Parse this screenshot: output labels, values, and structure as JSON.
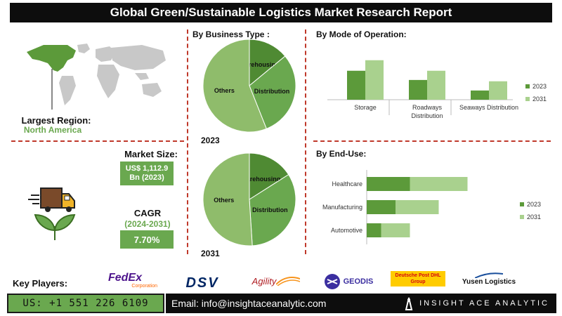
{
  "title": "Global Green/Sustainable Logistics Market Research Report",
  "left_panel": {
    "largest_region_label": "Largest Region:",
    "largest_region_value": "North America",
    "market_size_label": "Market Size:",
    "market_size_value_line1": "US$ 1,112.9",
    "market_size_value_line2": "Bn (2023)",
    "cagr_label": "CAGR",
    "cagr_period": "(2024-2031)",
    "cagr_value": "7.70%"
  },
  "colors": {
    "dark_green": "#5c9a3a",
    "light_green": "#a9d18e",
    "others_green": "#8fbc6b",
    "distribution_green": "#6aa84f",
    "warehousing_green": "#4f8a33",
    "accent_red": "#c0392b"
  },
  "key_players": {
    "label": "Key Players:",
    "logos": [
      "FedEx",
      "Corporation",
      "DSV",
      "Agility",
      "GEODIS",
      "Deutsche Post DHL",
      "Group",
      "Yusen Logistics"
    ]
  },
  "footer": {
    "phone": "US: +1 551 226 6109",
    "email": "Email: info@insightaceanalytic.com",
    "brand": "INSIGHT ACE ANALYTIC"
  },
  "chart_data": [
    {
      "type": "pie",
      "title": "By Business Type :",
      "year_label": "2023",
      "slices": [
        {
          "label": "Warehousing",
          "value": 14
        },
        {
          "label": "Distribution",
          "value": 30
        },
        {
          "label": "Others",
          "value": 56
        }
      ]
    },
    {
      "type": "pie",
      "title": "",
      "year_label": "2031",
      "slices": [
        {
          "label": "Warehousing",
          "value": 16
        },
        {
          "label": "Distribution",
          "value": 33
        },
        {
          "label": "Others",
          "value": 51
        }
      ]
    },
    {
      "type": "bar",
      "title": "By  Mode of Operation:",
      "categories": [
        "Storage",
        "Roadways Distribution",
        "Seaways Distribution"
      ],
      "series": [
        {
          "name": "2023",
          "values": [
            2.2,
            1.5,
            0.7
          ]
        },
        {
          "name": "2031",
          "values": [
            3.0,
            2.2,
            1.4
          ]
        }
      ],
      "legend": "right"
    },
    {
      "type": "bar",
      "orientation": "horizontal",
      "stacked": true,
      "title": "By End-Use:",
      "categories": [
        "Healthcare",
        "Manufacturing",
        "Automotive"
      ],
      "series": [
        {
          "name": "2023",
          "values": [
            3.0,
            2.0,
            1.0
          ]
        },
        {
          "name": "2031",
          "values": [
            4.0,
            3.0,
            2.0
          ]
        }
      ],
      "legend": "right"
    }
  ]
}
